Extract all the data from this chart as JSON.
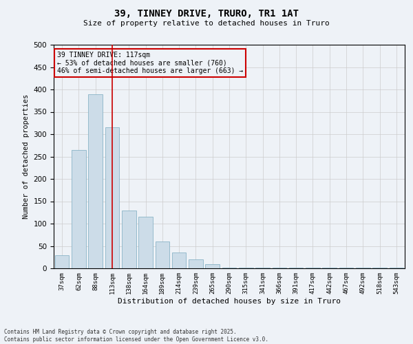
{
  "title_line1": "39, TINNEY DRIVE, TRURO, TR1 1AT",
  "title_line2": "Size of property relative to detached houses in Truro",
  "xlabel": "Distribution of detached houses by size in Truro",
  "ylabel": "Number of detached properties",
  "categories": [
    "37sqm",
    "62sqm",
    "88sqm",
    "113sqm",
    "138sqm",
    "164sqm",
    "189sqm",
    "214sqm",
    "239sqm",
    "265sqm",
    "290sqm",
    "315sqm",
    "341sqm",
    "366sqm",
    "391sqm",
    "417sqm",
    "442sqm",
    "467sqm",
    "492sqm",
    "518sqm",
    "543sqm"
  ],
  "values": [
    30,
    265,
    390,
    315,
    130,
    115,
    60,
    35,
    20,
    10,
    2,
    2,
    1,
    1,
    1,
    1,
    1,
    1,
    1,
    1,
    1
  ],
  "bar_color": "#ccdce8",
  "bar_edge_color": "#7aaabf",
  "grid_color": "#cccccc",
  "background_color": "#eef2f7",
  "vline_x": 3,
  "vline_color": "#cc0000",
  "annotation_text": "39 TINNEY DRIVE: 117sqm\n← 53% of detached houses are smaller (760)\n46% of semi-detached houses are larger (663) →",
  "annotation_box_color": "#cc0000",
  "ylim": [
    0,
    500
  ],
  "yticks": [
    0,
    50,
    100,
    150,
    200,
    250,
    300,
    350,
    400,
    450,
    500
  ],
  "footnote": "Contains HM Land Registry data © Crown copyright and database right 2025.\nContains public sector information licensed under the Open Government Licence v3.0.",
  "figsize": [
    6.0,
    5.0
  ],
  "dpi": 100
}
